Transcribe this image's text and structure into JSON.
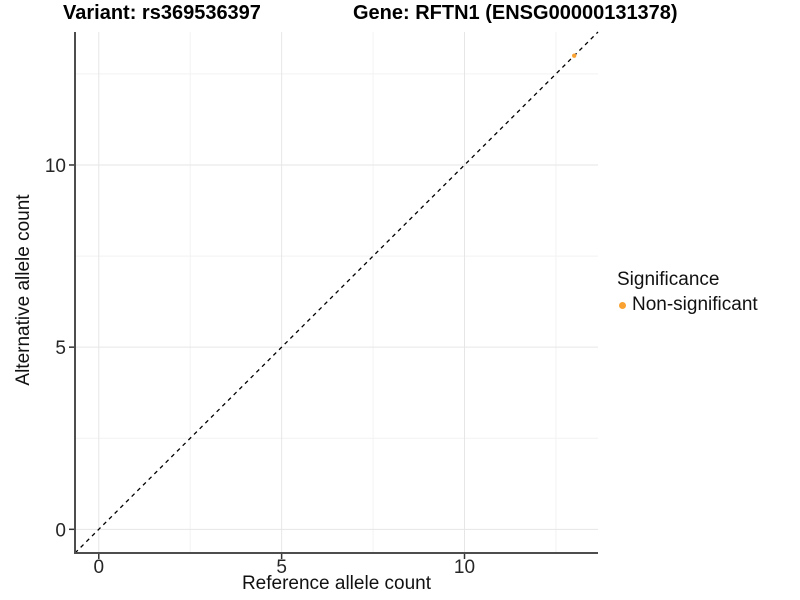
{
  "titles": {
    "variant": "Variant: rs369536397",
    "gene": "Gene: RFTN1 (ENSG00000131378)"
  },
  "chart_data": {
    "type": "scatter",
    "title": "Variant: rs369536397   Gene: RFTN1 (ENSG00000131378)",
    "xlabel": "Reference allele count",
    "ylabel": "Alternative allele count",
    "xlim": [
      -0.65,
      13.65
    ],
    "ylim": [
      -0.65,
      13.65
    ],
    "xticks": [
      0,
      5,
      10
    ],
    "yticks": [
      0,
      5,
      10
    ],
    "minor_xticks": [
      2.5,
      7.5,
      12.5
    ],
    "minor_yticks": [
      2.5,
      7.5,
      12.5
    ],
    "grid": "major and minor gridlines, white panel background",
    "series": [
      {
        "name": "Non-significant",
        "color": "#F9A232",
        "points": [
          {
            "x": 13,
            "y": 13
          }
        ]
      }
    ],
    "reference_line": {
      "type": "identity y = x",
      "style": "dashed",
      "color": "#000000"
    },
    "legend": {
      "title": "Significance",
      "position": "right",
      "items": [
        {
          "label": "Non-significant",
          "color": "#F9A232"
        }
      ]
    },
    "colors": {
      "grid_major": "#E6E6E6",
      "grid_minor": "#F2F2F2",
      "axis_line": "#4D4D4D",
      "tick_mark": "#333333",
      "tick_label": "#262626"
    }
  }
}
